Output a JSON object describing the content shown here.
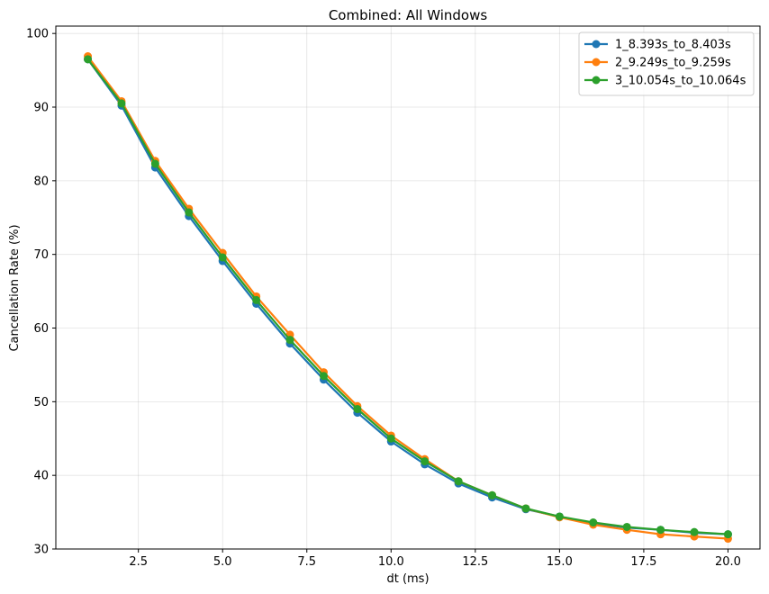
{
  "chart_data": {
    "type": "line",
    "title": "Combined: All Windows",
    "xlabel": "dt (ms)",
    "ylabel": "Cancellation Rate (%)",
    "xlim": [
      0.05,
      20.95
    ],
    "ylim": [
      30,
      101
    ],
    "xticks": [
      2.5,
      5.0,
      7.5,
      10.0,
      12.5,
      15.0,
      17.5,
      20.0
    ],
    "xtick_labels": [
      "2.5",
      "5.0",
      "7.5",
      "10.0",
      "12.5",
      "15.0",
      "17.5",
      "20.0"
    ],
    "yticks": [
      30,
      40,
      50,
      60,
      70,
      80,
      90,
      100
    ],
    "ytick_labels": [
      "30",
      "40",
      "50",
      "60",
      "70",
      "80",
      "90",
      "100"
    ],
    "grid": true,
    "legend_position": "top-right",
    "x": [
      1,
      2,
      3,
      4,
      5,
      6,
      7,
      8,
      9,
      10,
      11,
      12,
      13,
      14,
      15,
      16,
      17,
      18,
      19,
      20
    ],
    "series": [
      {
        "name": "1_8.393s_to_8.403s",
        "color": "#1f77b4",
        "values": [
          96.5,
          90.2,
          81.8,
          75.2,
          69.1,
          63.3,
          57.9,
          53.0,
          48.5,
          44.6,
          41.5,
          38.9,
          37.0,
          35.4,
          34.4,
          33.5,
          32.9,
          32.6,
          32.2,
          32.0
        ]
      },
      {
        "name": "2_9.249s_to_9.259s",
        "color": "#ff7f0e",
        "values": [
          96.9,
          90.8,
          82.7,
          76.2,
          70.2,
          64.3,
          59.1,
          54.0,
          49.4,
          45.4,
          42.2,
          39.2,
          37.3,
          35.5,
          34.3,
          33.3,
          32.6,
          32.0,
          31.7,
          31.4
        ]
      },
      {
        "name": "3_10.054s_to_10.064s",
        "color": "#2ca02c",
        "values": [
          96.5,
          90.5,
          82.3,
          75.7,
          69.6,
          63.8,
          58.4,
          53.5,
          49.0,
          45.0,
          41.9,
          39.2,
          37.3,
          35.5,
          34.4,
          33.6,
          33.0,
          32.6,
          32.3,
          32.0
        ]
      }
    ]
  }
}
